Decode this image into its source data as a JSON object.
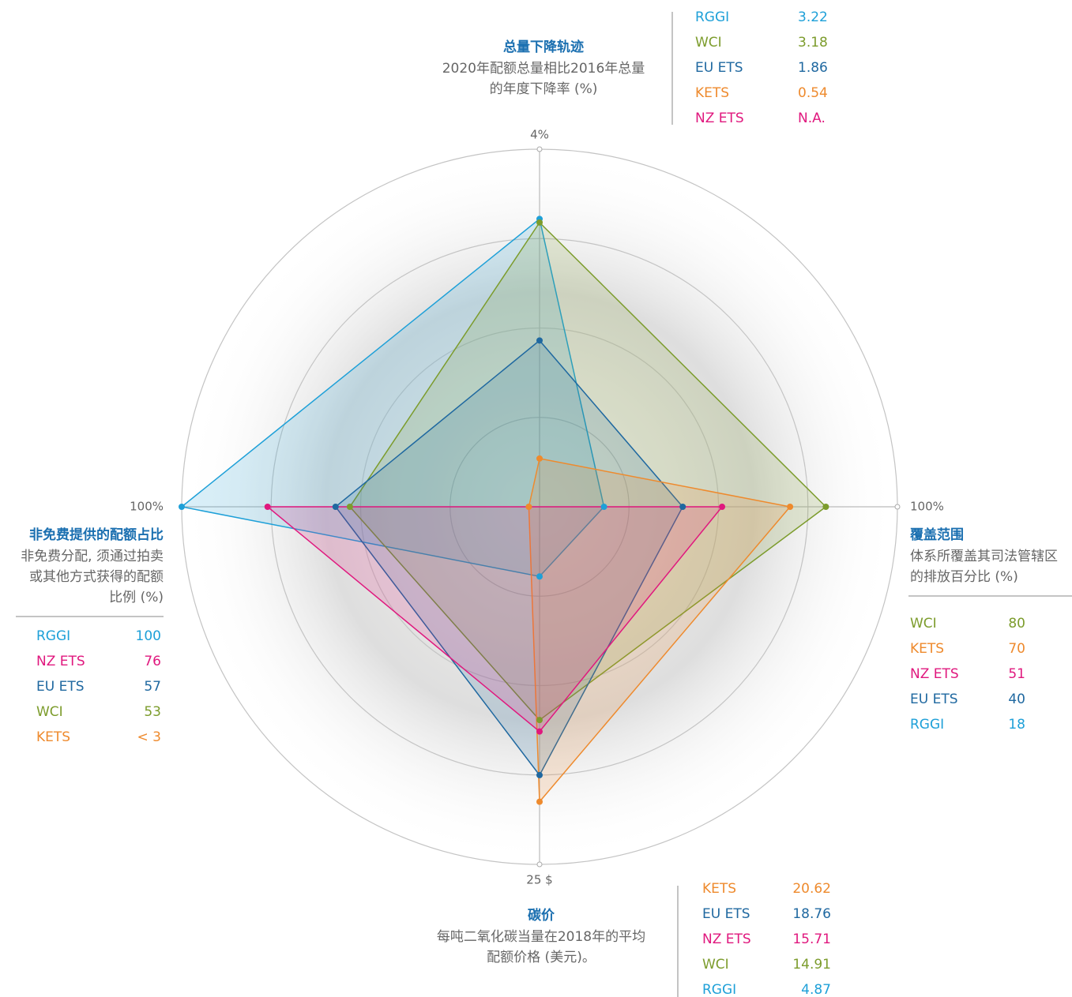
{
  "chart_data": {
    "type": "radar",
    "series": [
      {
        "name": "RGGI",
        "color": "#1ea0d8"
      },
      {
        "name": "WCI",
        "color": "#7c9c2c"
      },
      {
        "name": "EU ETS",
        "color": "#1f68a0"
      },
      {
        "name": "KETS",
        "color": "#ee8a2d"
      },
      {
        "name": "NZ ETS",
        "color": "#e0187e"
      }
    ],
    "rings": 4,
    "axes": [
      {
        "title": "总量下降轨迹",
        "subtitle": [
          "2020年配额总量相比2016年总量",
          "的年度下降率 (%)"
        ],
        "max": {
          "value": 4,
          "label": "4%"
        },
        "rows": [
          {
            "name": "RGGI",
            "value": 3.22
          },
          {
            "name": "WCI",
            "value": 3.18
          },
          {
            "name": "EU ETS",
            "value": 1.86
          },
          {
            "name": "KETS",
            "value": 0.54
          },
          {
            "name": "NZ ETS",
            "value": null,
            "label": "N.A."
          }
        ]
      },
      {
        "title": "覆盖范围",
        "subtitle": [
          "体系所覆盖其司法管辖区",
          "的排放百分比 (%)"
        ],
        "max": {
          "value": 100,
          "label": "100%"
        },
        "rows": [
          {
            "name": "WCI",
            "value": 80
          },
          {
            "name": "KETS",
            "value": 70
          },
          {
            "name": "NZ ETS",
            "value": 51
          },
          {
            "name": "EU ETS",
            "value": 40
          },
          {
            "name": "RGGI",
            "value": 18
          }
        ]
      },
      {
        "title": "碳价",
        "subtitle": [
          "每吨二氧化碳当量在2018年的平均",
          "配额价格 (美元)。"
        ],
        "max": {
          "value": 25,
          "label": "25 $"
        },
        "rows": [
          {
            "name": "KETS",
            "value": 20.62
          },
          {
            "name": "EU ETS",
            "value": 18.76
          },
          {
            "name": "NZ ETS",
            "value": 15.71
          },
          {
            "name": "WCI",
            "value": 14.91
          },
          {
            "name": "RGGI",
            "value": 4.87
          }
        ]
      },
      {
        "title": "非免费提供的配额占比",
        "subtitle": [
          "非免费分配, 须通过拍卖",
          "或其他方式获得的配额",
          "比例 (%)"
        ],
        "max": {
          "value": 100,
          "label": "100%"
        },
        "rows": [
          {
            "name": "RGGI",
            "value": 100
          },
          {
            "name": "NZ ETS",
            "value": 76
          },
          {
            "name": "EU ETS",
            "value": 57
          },
          {
            "name": "WCI",
            "value": 53
          },
          {
            "name": "KETS",
            "value": 3,
            "label": "< 3"
          }
        ]
      }
    ]
  }
}
